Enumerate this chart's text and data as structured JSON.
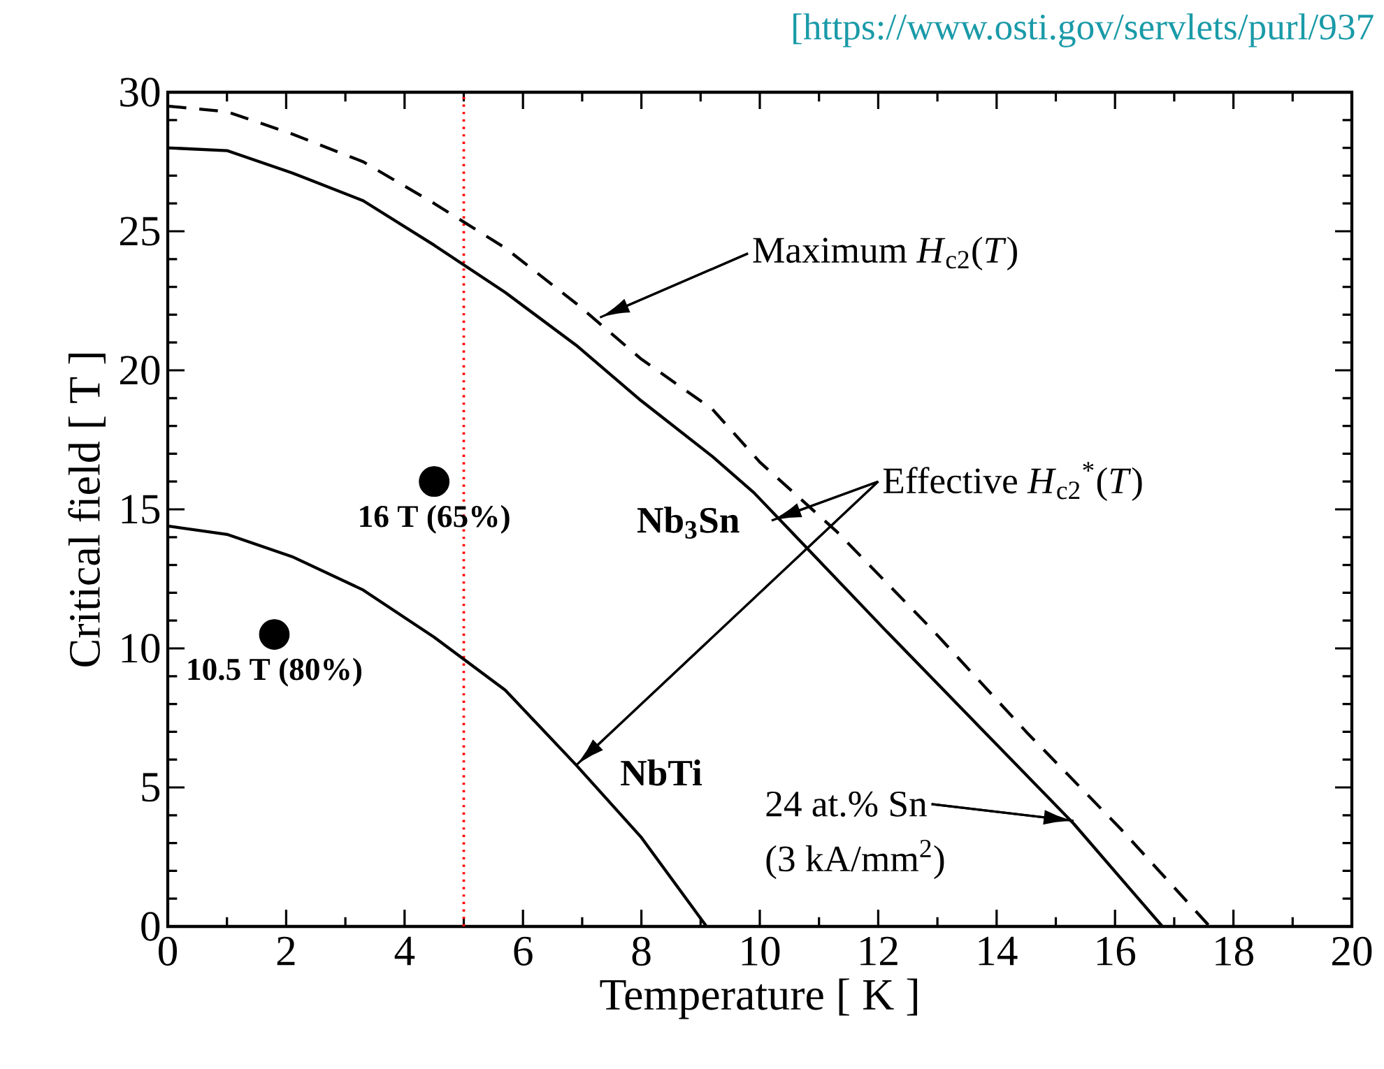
{
  "chart_data": {
    "type": "line",
    "xlabel": "Temperature [ K ]",
    "ylabel": "Critical field [ T ]",
    "xlim": [
      0,
      20
    ],
    "ylim": [
      0,
      30
    ],
    "xticks": [
      0,
      2,
      4,
      6,
      8,
      10,
      12,
      14,
      16,
      18,
      20
    ],
    "yticks": [
      0,
      5,
      10,
      15,
      20,
      25,
      30
    ],
    "series": [
      {
        "color": "#000000",
        "line_style": "dashed",
        "x": [
          0,
          1,
          2.1,
          3.3,
          4.5,
          5.7,
          6.9,
          8.0,
          9.2,
          10.0,
          11.3,
          12.9,
          14.5,
          16.1,
          17.6
        ],
        "values": [
          29.5,
          29.3,
          28.5,
          27.5,
          26.0,
          24.4,
          22.4,
          20.4,
          18.6,
          16.7,
          14.2,
          10.7,
          7.0,
          3.5,
          0
        ]
      },
      {
        "name": "Nb$_{3}$Sn",
        "color": "#000000",
        "line_style": "solid",
        "x": [
          0,
          1,
          2.1,
          3.3,
          4.5,
          5.7,
          6.9,
          8.0,
          9.2,
          9.9,
          10.8,
          12.1,
          13.7,
          15.3,
          16.8
        ],
        "values": [
          28.0,
          27.9,
          27.1,
          26.1,
          24.5,
          22.8,
          20.9,
          18.9,
          16.9,
          15.6,
          13.6,
          10.7,
          7.2,
          3.7,
          0
        ]
      },
      {
        "name": "NbTi",
        "color": "#000000",
        "line_style": "solid",
        "x": [
          0,
          1,
          2.1,
          3.3,
          4.5,
          5.7,
          6.9,
          8.0,
          9.1
        ],
        "values": [
          14.4,
          14.1,
          13.3,
          12.1,
          10.4,
          8.5,
          5.8,
          3.2,
          0
        ]
      },
      {
        "type": "scatter",
        "marker": "circle",
        "color": "#000000",
        "x": [
          1.8,
          4.5
        ],
        "values": [
          10.5,
          16
        ],
        "value_labels": [
          "10.5 T (80%)",
          "16 T (65%)"
        ]
      }
    ],
    "ref_lines": [
      {
        "axis": "x",
        "value": 5,
        "color": "#ff0000",
        "line_style": "dotted"
      }
    ],
    "annotations": [
      "[https://www.osti.gov/servlets/purl/937",
      {
        "text": "Maximum *H*$_{c2}$(*T*)",
        "x": 7.3,
        "y": 21.9
      },
      {
        "text": "Effective *H*$_{c2}$$^{*}$(*T*)",
        "x": 10.2,
        "y": 14.6
      },
      {
        "text": "24 at.% Sn",
        "x": 15.3,
        "y": 3.8
      },
      "(3 kA/mm$^{2}$)"
    ]
  }
}
